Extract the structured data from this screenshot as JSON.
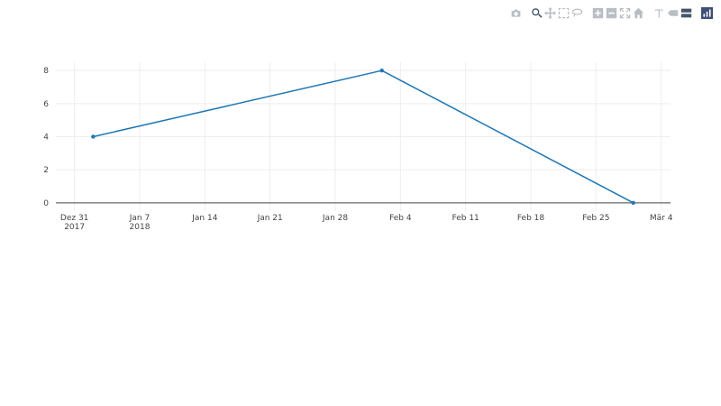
{
  "modebar": {
    "buttons": [
      {
        "name": "camera-icon"
      },
      {
        "name": "zoom-icon"
      },
      {
        "name": "pan-icon"
      },
      {
        "name": "box-select-icon"
      },
      {
        "name": "lasso-select-icon"
      },
      {
        "name": "zoom-in-icon"
      },
      {
        "name": "zoom-out-icon"
      },
      {
        "name": "autoscale-icon"
      },
      {
        "name": "reset-axes-icon"
      },
      {
        "name": "spike-lines-icon"
      },
      {
        "name": "hover-closest-icon"
      },
      {
        "name": "hover-compare-icon"
      },
      {
        "name": "plotly-logo-icon"
      }
    ]
  },
  "chart_data": {
    "type": "line",
    "title": "",
    "xlabel": "",
    "ylabel": "",
    "x": [
      "2018-01-02",
      "2018-02-02",
      "2018-03-01"
    ],
    "series": [
      {
        "values": [
          4,
          8,
          0
        ],
        "color": "#1f77b4"
      }
    ],
    "xlim": [
      "2017-12-29",
      "2018-03-05"
    ],
    "ylim": [
      -0.5,
      8.5
    ],
    "x_ticks": [
      {
        "date": "2017-12-31",
        "label": "Dez 31",
        "sublabel": "2017"
      },
      {
        "date": "2018-01-07",
        "label": "Jan 7",
        "sublabel": "2018"
      },
      {
        "date": "2018-01-14",
        "label": "Jan 14",
        "sublabel": ""
      },
      {
        "date": "2018-01-21",
        "label": "Jan 21",
        "sublabel": ""
      },
      {
        "date": "2018-01-28",
        "label": "Jan 28",
        "sublabel": ""
      },
      {
        "date": "2018-02-04",
        "label": "Feb 4",
        "sublabel": ""
      },
      {
        "date": "2018-02-11",
        "label": "Feb 11",
        "sublabel": ""
      },
      {
        "date": "2018-02-18",
        "label": "Feb 18",
        "sublabel": ""
      },
      {
        "date": "2018-02-25",
        "label": "Feb 25",
        "sublabel": ""
      },
      {
        "date": "2018-03-04",
        "label": "Mär 4",
        "sublabel": ""
      }
    ],
    "y_ticks": [
      {
        "value": 0,
        "label": "0"
      },
      {
        "value": 2,
        "label": "2"
      },
      {
        "value": 4,
        "label": "4"
      },
      {
        "value": 6,
        "label": "6"
      },
      {
        "value": 8,
        "label": "8"
      }
    ],
    "grid": true,
    "colors": {
      "grid": "#eeeeee",
      "zeroline": "#444444"
    }
  }
}
